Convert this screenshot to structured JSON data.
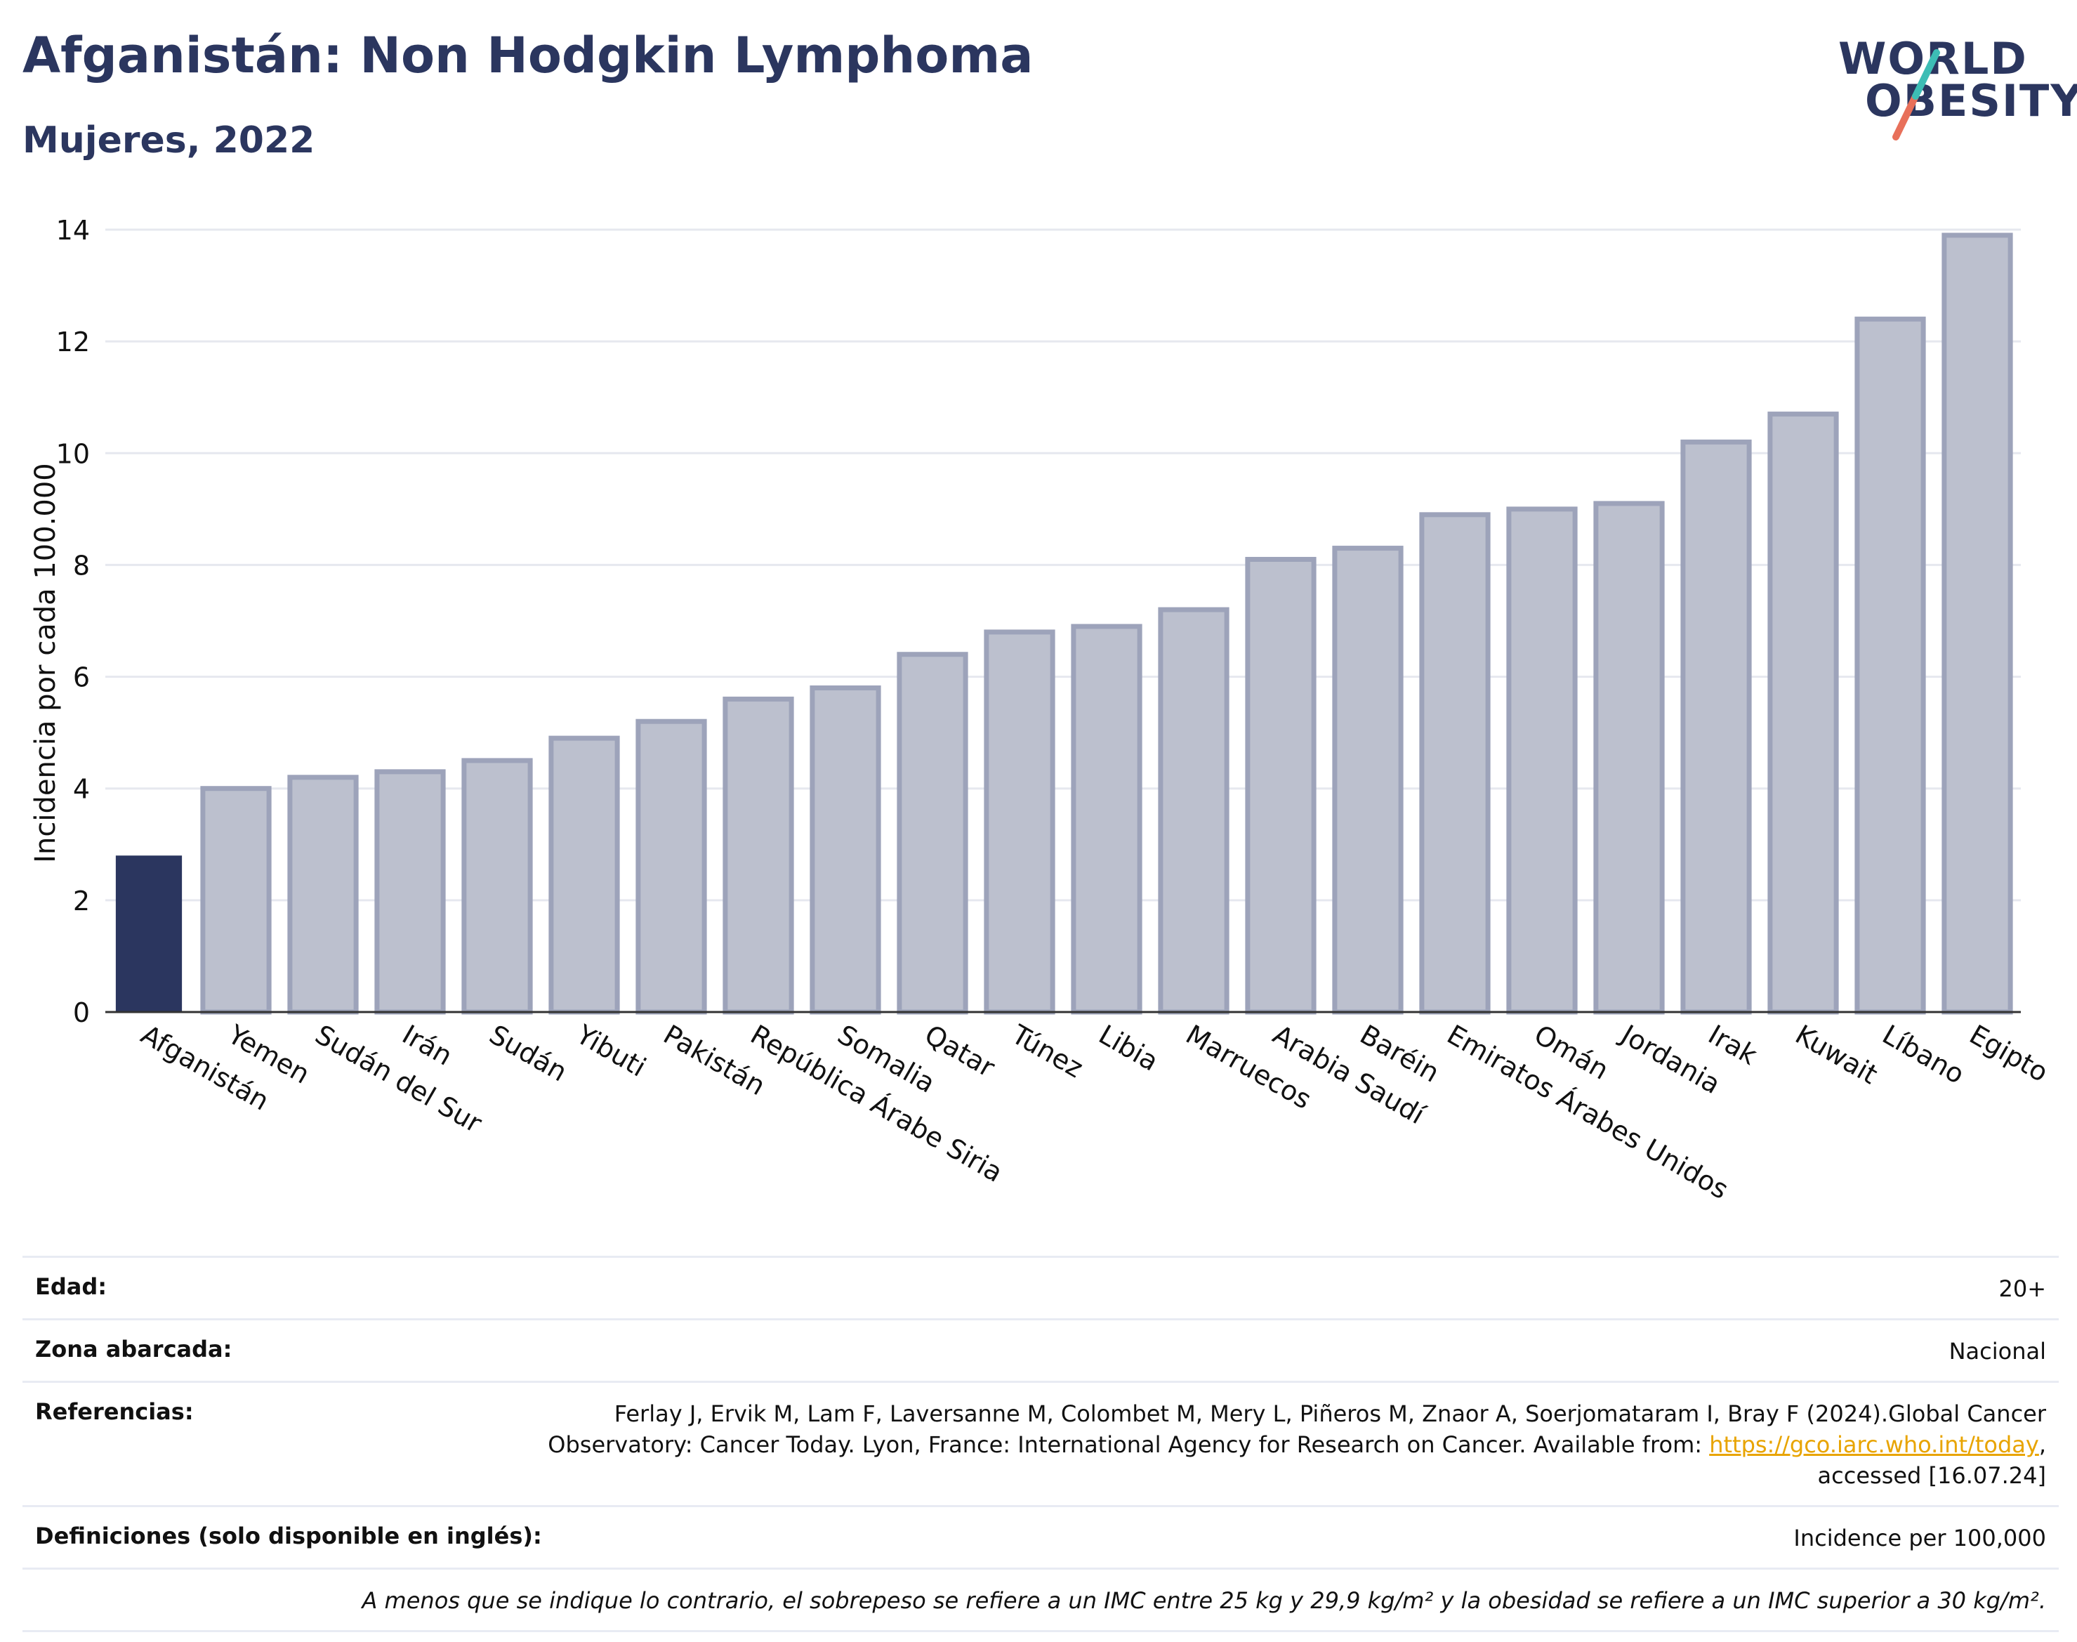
{
  "header": {
    "title": "Afganistán: Non Hodgkin Lymphoma",
    "subtitle": "Mujeres, 2022"
  },
  "logo": {
    "line1": "WORLD",
    "line2": "OBESITY"
  },
  "colors": {
    "highlight": "#2b365f",
    "bars": "#bcc0ce",
    "bar_border": "#9da3ba",
    "title": "#2b365f",
    "link": "#e8a400",
    "grid": "#e6e8ef"
  },
  "chart_data": {
    "type": "bar",
    "title": "Afganistán: Non Hodgkin Lymphoma",
    "subtitle": "Mujeres, 2022",
    "ylabel": "Incidencia por cada 100.000",
    "xlabel": "",
    "ylim": [
      0,
      14
    ],
    "yticks": [
      0,
      2,
      4,
      6,
      8,
      10,
      12,
      14
    ],
    "grid": true,
    "highlight": "Afganistán",
    "categories": [
      "Afganistán",
      "Yemen",
      "Sudán del Sur",
      "Irán",
      "Sudán",
      "Yibuti",
      "Pakistán",
      "República Árabe Siria",
      "Somalia",
      "Qatar",
      "Túnez",
      "Libia",
      "Marruecos",
      "Arabia Saudí",
      "Baréin",
      "Emiratos Árabes Unidos",
      "Omán",
      "Jordania",
      "Irak",
      "Kuwait",
      "Líbano",
      "Egipto"
    ],
    "values": [
      2.8,
      4.0,
      4.2,
      4.3,
      4.5,
      4.9,
      5.2,
      5.6,
      5.8,
      6.4,
      6.8,
      6.9,
      7.2,
      8.1,
      8.3,
      8.9,
      9.0,
      9.1,
      10.2,
      10.7,
      12.4,
      13.9
    ]
  },
  "info": {
    "edad_label": "Edad:",
    "edad_value": "20+",
    "zona_label": "Zona abarcada:",
    "zona_value": "Nacional",
    "ref_label": "Referencias:",
    "ref_line1": "Ferlay J, Ervik M, Lam F, Laversanne M, Colombet M, Mery L, Piñeros M, Znaor A, Soerjomataram I, Bray F (2024).Global Cancer",
    "ref_line2": "Observatory: Cancer Today. Lyon, France: International Agency for Research on Cancer. Available from: ",
    "ref_link": "https://gco.iarc.who.int/today",
    "ref_line2_end": ",",
    "ref_line3": "accessed [16.07.24]",
    "def_label": "Definiciones (solo disponible en inglés):",
    "def_value": "Incidence per 100,000",
    "note": "A menos que se indique lo contrario, el sobrepeso se refiere a un IMC entre 25 kg y 29,9 kg/m² y la obesidad se refiere a un IMC superior a 30 kg/m²."
  }
}
